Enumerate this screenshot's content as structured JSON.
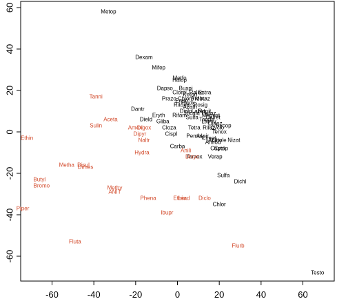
{
  "chart_data": {
    "type": "scatter",
    "title": "",
    "xlabel": "",
    "ylabel": "",
    "xlim": [
      -75,
      75
    ],
    "ylim": [
      -72,
      63
    ],
    "x_ticks": [
      -60,
      -40,
      -20,
      0,
      20,
      40,
      60
    ],
    "y_ticks": [
      -60,
      -40,
      -20,
      0,
      20,
      40,
      60
    ],
    "x_tick_labels": [
      "-60",
      "-40",
      "-20",
      "0",
      "20",
      "40",
      "60"
    ],
    "y_tick_labels": [
      "-60",
      "-40",
      "-20",
      "0",
      "20",
      "40",
      "60"
    ],
    "colors": {
      "group_a": "#000000",
      "group_b": "#d2492a",
      "axis": "#000000"
    },
    "series": [
      {
        "color_key": "group_a",
        "points": [
          {
            "label": "Metop",
            "x": -33,
            "y": 58
          },
          {
            "label": "Dexam",
            "x": -16,
            "y": 36
          },
          {
            "label": "Mifep",
            "x": -9,
            "y": 31
          },
          {
            "label": "Metfo",
            "x": 1,
            "y": 26
          },
          {
            "label": "Halop",
            "x": 1,
            "y": 25
          },
          {
            "label": "Dapso",
            "x": -6,
            "y": 21
          },
          {
            "label": "Buspi",
            "x": 4,
            "y": 21
          },
          {
            "label": "Clomi",
            "x": 1,
            "y": 19
          },
          {
            "label": "Keton",
            "x": 6,
            "y": 18
          },
          {
            "label": "Raloc",
            "x": 9,
            "y": 19
          },
          {
            "label": "Estra",
            "x": 13,
            "y": 19
          },
          {
            "label": "Chlorp",
            "x": 4,
            "y": 16
          },
          {
            "label": "Prazo",
            "x": -4,
            "y": 16
          },
          {
            "label": "Emtri",
            "x": 2,
            "y": 15
          },
          {
            "label": "Probu",
            "x": 10,
            "y": 16
          },
          {
            "label": "Mirtaz",
            "x": 12,
            "y": 16
          },
          {
            "label": "Fluox",
            "x": 5,
            "y": 14
          },
          {
            "label": "Ritona",
            "x": 2,
            "y": 13
          },
          {
            "label": "Azath",
            "x": 6,
            "y": 12
          },
          {
            "label": "Rosig",
            "x": 11,
            "y": 13
          },
          {
            "label": "Dantr",
            "x": -19,
            "y": 11
          },
          {
            "label": "Diclo",
            "x": 4,
            "y": 10
          },
          {
            "label": "Ricala",
            "x": 7,
            "y": 9
          },
          {
            "label": "Labet",
            "x": 10,
            "y": 10
          },
          {
            "label": "Ranit",
            "x": 13,
            "y": 10
          },
          {
            "label": "Hetaz",
            "x": 15,
            "y": 9
          },
          {
            "label": "Megest",
            "x": 16,
            "y": 8
          },
          {
            "label": "Taurin",
            "x": 14,
            "y": 6
          },
          {
            "label": "Eryth",
            "x": -9,
            "y": 8
          },
          {
            "label": "Rifam",
            "x": 1,
            "y": 8
          },
          {
            "label": "Sulfa",
            "x": 7,
            "y": 7
          },
          {
            "label": "Diuret",
            "x": 17,
            "y": 7
          },
          {
            "label": "Dield",
            "x": -15,
            "y": 6
          },
          {
            "label": "Gliba",
            "x": -7,
            "y": 5
          },
          {
            "label": "Lamiv",
            "x": 15,
            "y": 5
          },
          {
            "label": "Olanz",
            "x": 18,
            "y": 4
          },
          {
            "label": "Hycop",
            "x": 22,
            "y": 3
          },
          {
            "label": "Cloza",
            "x": -4,
            "y": 2
          },
          {
            "label": "Tetra",
            "x": 8,
            "y": 2
          },
          {
            "label": "Riluz",
            "x": 15,
            "y": 2
          },
          {
            "label": "Cyclo",
            "x": 19,
            "y": 2
          },
          {
            "label": "Cispl",
            "x": -3,
            "y": -1
          },
          {
            "label": "Tenox",
            "x": 20,
            "y": 0
          },
          {
            "label": "Pemol",
            "x": 8,
            "y": -2
          },
          {
            "label": "Aspir",
            "x": 12,
            "y": -2
          },
          {
            "label": "Cimet",
            "x": 15,
            "y": -3
          },
          {
            "label": "Aceto",
            "x": 18,
            "y": -4
          },
          {
            "label": "Chole",
            "x": 20,
            "y": -4
          },
          {
            "label": "Nizat",
            "x": 27,
            "y": -4
          },
          {
            "label": "Amiod",
            "x": 17,
            "y": -5
          },
          {
            "label": "Carba",
            "x": 0,
            "y": -7
          },
          {
            "label": "Captop",
            "x": 20,
            "y": -8
          },
          {
            "label": "Cycl",
            "x": 20,
            "y": -8
          },
          {
            "label": "Tamox",
            "x": 8,
            "y": -12
          },
          {
            "label": "Verap",
            "x": 18,
            "y": -12
          },
          {
            "label": "Sulfa",
            "x": 22,
            "y": -21
          },
          {
            "label": "Dichl",
            "x": 30,
            "y": -24
          },
          {
            "label": "Chlor",
            "x": 20,
            "y": -35
          },
          {
            "label": "Testo",
            "x": 67,
            "y": -68
          }
        ]
      },
      {
        "color_key": "group_b",
        "points": [
          {
            "label": "Tanni",
            "x": -39,
            "y": 17
          },
          {
            "label": "Aceta",
            "x": -32,
            "y": 6
          },
          {
            "label": "Sulin",
            "x": -39,
            "y": 3
          },
          {
            "label": "Amoxi",
            "x": -20,
            "y": 2
          },
          {
            "label": "Digox",
            "x": -16,
            "y": 2
          },
          {
            "label": "Dipyr",
            "x": -18,
            "y": -1
          },
          {
            "label": "Naltr",
            "x": -16,
            "y": -4
          },
          {
            "label": "Ethin",
            "x": -72,
            "y": -3
          },
          {
            "label": "Hydra",
            "x": -17,
            "y": -10
          },
          {
            "label": "Anili",
            "x": 4,
            "y": -9
          },
          {
            "label": "Dicyc",
            "x": 7,
            "y": -12
          },
          {
            "label": "Metha",
            "x": -53,
            "y": -16
          },
          {
            "label": "Disul",
            "x": -45,
            "y": -16
          },
          {
            "label": "Dimes",
            "x": -44,
            "y": -17
          },
          {
            "label": "Butyl",
            "x": -66,
            "y": -23
          },
          {
            "label": "Bromo",
            "x": -65,
            "y": -26
          },
          {
            "label": "Methy",
            "x": -30,
            "y": -27
          },
          {
            "label": "ANIT",
            "x": -30,
            "y": -29
          },
          {
            "label": "Phena",
            "x": -14,
            "y": -32
          },
          {
            "label": "Ethio",
            "x": 1,
            "y": -32
          },
          {
            "label": "Lead",
            "x": 3,
            "y": -32
          },
          {
            "label": "Diclo",
            "x": 13,
            "y": -32
          },
          {
            "label": "Piper",
            "x": -74,
            "y": -37
          },
          {
            "label": "Ibupr",
            "x": -5,
            "y": -39
          },
          {
            "label": "Fluta",
            "x": -49,
            "y": -53
          },
          {
            "label": "Flurb",
            "x": 29,
            "y": -55
          }
        ]
      }
    ]
  }
}
